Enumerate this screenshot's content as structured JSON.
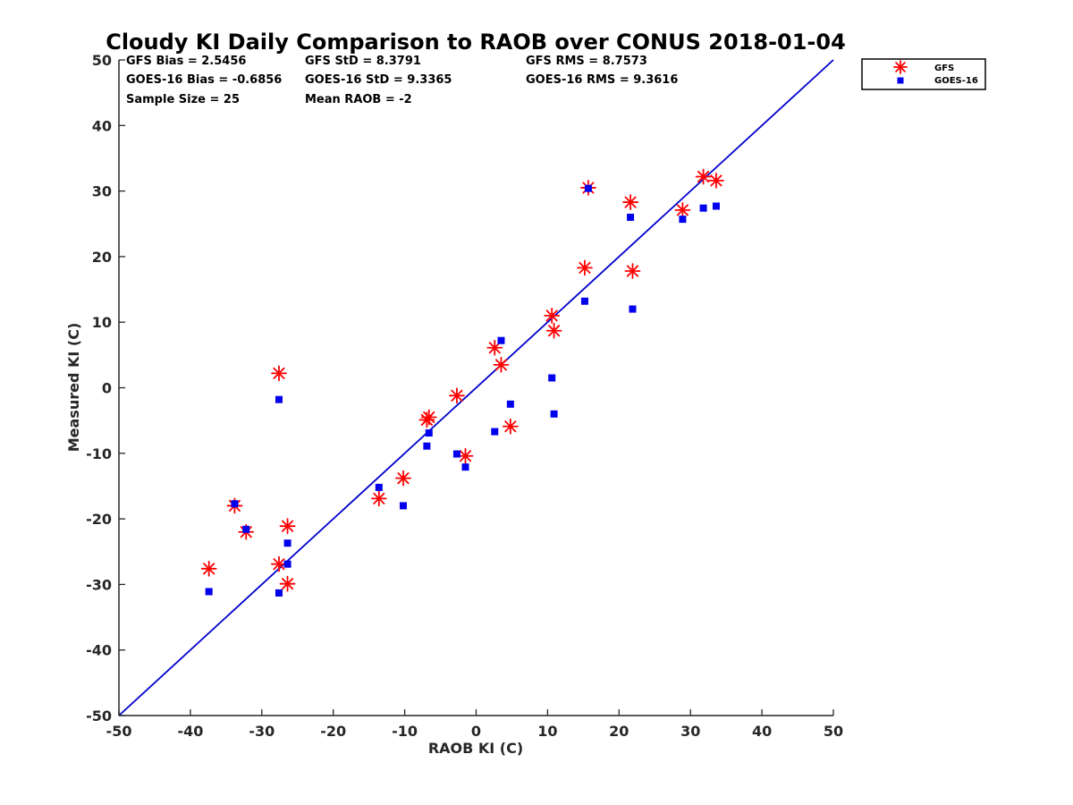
{
  "chart_data": {
    "type": "scatter",
    "title": "Cloudy KI Daily Comparison to RAOB over CONUS 2018-01-04",
    "xlabel": "RAOB KI (C)",
    "ylabel": "Measured KI (C)",
    "xlim": [
      -50,
      50
    ],
    "ylim": [
      -50,
      50
    ],
    "xticks": [
      "-50",
      "-40",
      "-30",
      "-20",
      "-10",
      "0",
      "10",
      "20",
      "30",
      "40",
      "50"
    ],
    "yticks": [
      "50",
      "40",
      "30",
      "20",
      "10",
      "0",
      "-10",
      "-20",
      "-30",
      "-40",
      "-50"
    ],
    "grid": false,
    "legend_position": "top-right, outside plot",
    "reference_line": "y = x",
    "colors": {
      "gfs": "#ff0000",
      "goes": "#0000ee",
      "line": "#0000cc",
      "axis": "#262626"
    },
    "stats": [
      [
        "GFS Bias = 2.5456",
        "GFS StD = 8.3791",
        "GFS RMS = 8.7573"
      ],
      [
        "GOES-16 Bias = -0.6856",
        "GOES-16 StD = 9.3365",
        "GOES-16 RMS = 9.3616"
      ],
      [
        "Sample Size = 25",
        "Mean RAOB = -2",
        ""
      ]
    ],
    "series": [
      {
        "name": "GFS",
        "marker": "asterisk",
        "points": [
          [
            -37.4,
            -27.6
          ],
          [
            -33.8,
            -18.0
          ],
          [
            -32.2,
            -22.0
          ],
          [
            -27.6,
            2.2
          ],
          [
            -27.6,
            -26.9
          ],
          [
            -26.4,
            -21.1
          ],
          [
            -26.4,
            -29.9
          ],
          [
            -13.6,
            -16.9
          ],
          [
            -10.2,
            -13.8
          ],
          [
            -6.9,
            -4.9
          ],
          [
            -6.6,
            -4.5
          ],
          [
            -2.7,
            -1.2
          ],
          [
            -1.5,
            -10.4
          ],
          [
            2.6,
            6.1
          ],
          [
            3.5,
            3.5
          ],
          [
            4.8,
            -5.9
          ],
          [
            10.6,
            11.0
          ],
          [
            10.9,
            8.7
          ],
          [
            15.2,
            18.3
          ],
          [
            15.7,
            30.5
          ],
          [
            21.6,
            28.3
          ],
          [
            21.9,
            17.8
          ],
          [
            28.9,
            27.1
          ],
          [
            31.8,
            32.2
          ],
          [
            33.6,
            31.6
          ]
        ]
      },
      {
        "name": "GOES-16",
        "marker": "square",
        "points": [
          [
            -37.4,
            -31.1
          ],
          [
            -33.8,
            -17.7
          ],
          [
            -32.2,
            -21.6
          ],
          [
            -27.6,
            -1.8
          ],
          [
            -27.6,
            -31.3
          ],
          [
            -26.4,
            -23.7
          ],
          [
            -26.4,
            -26.9
          ],
          [
            -13.6,
            -15.2
          ],
          [
            -10.2,
            -18.0
          ],
          [
            -6.9,
            -8.9
          ],
          [
            -6.6,
            -6.9
          ],
          [
            -2.7,
            -10.1
          ],
          [
            -1.5,
            -12.1
          ],
          [
            2.6,
            -6.7
          ],
          [
            3.5,
            7.2
          ],
          [
            4.8,
            -2.5
          ],
          [
            10.6,
            1.5
          ],
          [
            10.9,
            -4.0
          ],
          [
            15.2,
            13.2
          ],
          [
            15.7,
            30.4
          ],
          [
            21.6,
            26.0
          ],
          [
            21.9,
            12.0
          ],
          [
            28.9,
            25.7
          ],
          [
            31.8,
            27.4
          ],
          [
            33.6,
            27.7
          ]
        ]
      }
    ]
  }
}
